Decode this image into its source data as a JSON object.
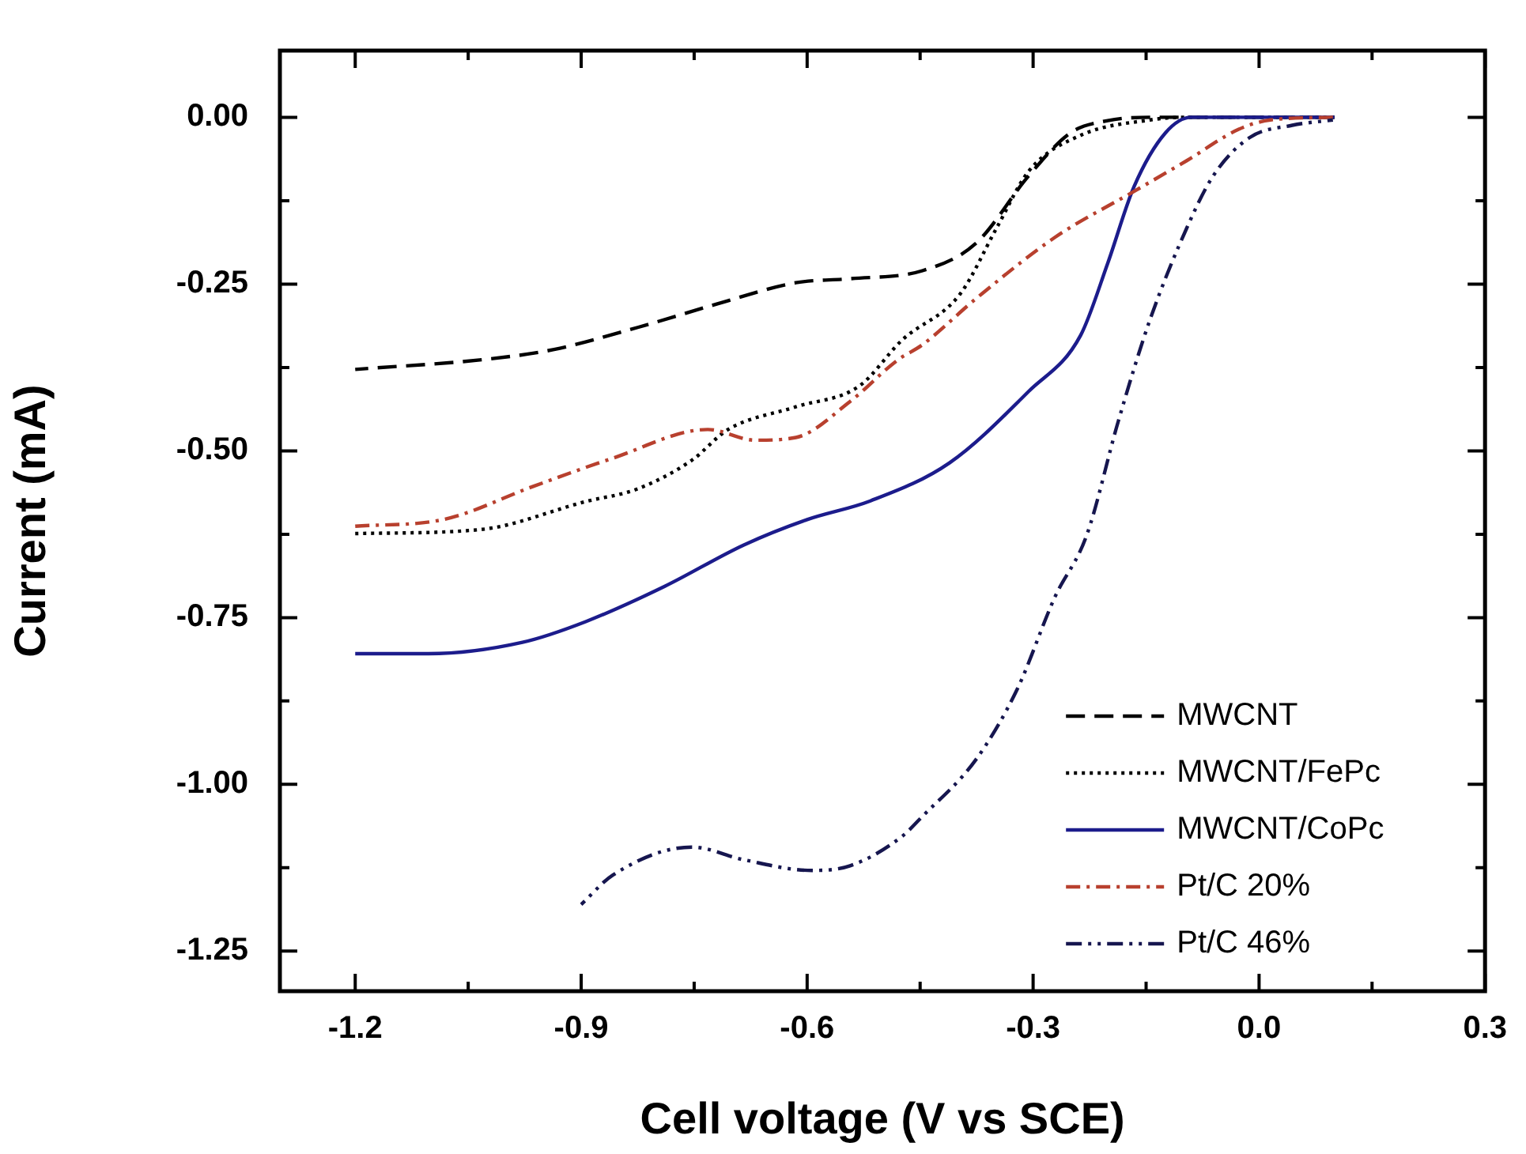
{
  "chart_data": {
    "type": "line",
    "xlabel": "Cell voltage (V vs SCE)",
    "ylabel": "Current (mA)",
    "legend": "bottom right",
    "grid": false,
    "xlim": [
      -1.3,
      0.3
    ],
    "ylim": [
      -1.31,
      0.1
    ],
    "xticks": [
      {
        "value": -1.2,
        "label": "-1.2"
      },
      {
        "value": -1.05,
        "label": null
      },
      {
        "value": -0.9,
        "label": "-0.9"
      },
      {
        "value": -0.75,
        "label": null
      },
      {
        "value": -0.6,
        "label": "-0.6"
      },
      {
        "value": -0.45,
        "label": null
      },
      {
        "value": -0.3,
        "label": "-0.3"
      },
      {
        "value": -0.15,
        "label": null
      },
      {
        "value": 0,
        "label": "0.0"
      },
      {
        "value": 0.15,
        "label": null
      },
      {
        "value": 0.3,
        "label": "0.3"
      }
    ],
    "yticks": [
      {
        "value": 0,
        "label": "0.00"
      },
      {
        "value": -0.125,
        "label": null
      },
      {
        "value": -0.25,
        "label": "-0.25"
      },
      {
        "value": -0.375,
        "label": null
      },
      {
        "value": -0.5,
        "label": "-0.50"
      },
      {
        "value": -0.625,
        "label": null
      },
      {
        "value": -0.75,
        "label": "-0.75"
      },
      {
        "value": -0.875,
        "label": null
      },
      {
        "value": -1,
        "label": "-1.00"
      },
      {
        "value": -1.125,
        "label": null
      },
      {
        "value": -1.25,
        "label": "-1.25"
      }
    ],
    "series": [
      {
        "name": "MWCNT",
        "color": "#000000",
        "line_style": "dashed",
        "x": [
          -1.2,
          -1.02,
          -0.936,
          -0.825,
          -0.72,
          -0.615,
          -0.543,
          -0.447,
          -0.376,
          -0.306,
          -0.25,
          -0.201,
          -0.145,
          -0.1,
          0,
          0.1
        ],
        "values": [
          -0.378,
          -0.362,
          -0.348,
          -0.315,
          -0.28,
          -0.248,
          -0.242,
          -0.23,
          -0.189,
          -0.088,
          -0.023,
          -0.005,
          0,
          0,
          0,
          0
        ]
      },
      {
        "name": "MWCNT/FePc",
        "color": "#000000",
        "line_style": "dotted",
        "x": [
          -1.2,
          -1.034,
          -0.894,
          -0.825,
          -0.753,
          -0.705,
          -0.615,
          -0.531,
          -0.474,
          -0.397,
          -0.348,
          -0.306,
          -0.237,
          -0.145,
          -0.1,
          0,
          0.1
        ],
        "values": [
          -0.624,
          -0.618,
          -0.576,
          -0.557,
          -0.514,
          -0.468,
          -0.434,
          -0.403,
          -0.334,
          -0.265,
          -0.165,
          -0.081,
          -0.027,
          -0.004,
          0,
          0,
          0
        ]
      },
      {
        "name": "MWCNT/CoPc",
        "color": "#1c1c8c",
        "line_style": "solid",
        "x": [
          -1.2,
          -1.103,
          -0.978,
          -0.894,
          -0.789,
          -0.684,
          -0.6,
          -0.516,
          -0.411,
          -0.306,
          -0.237,
          -0.201,
          -0.166,
          -0.124,
          -0.09,
          0,
          0.1
        ],
        "values": [
          -0.804,
          -0.804,
          -0.787,
          -0.756,
          -0.703,
          -0.641,
          -0.603,
          -0.575,
          -0.518,
          -0.411,
          -0.327,
          -0.219,
          -0.104,
          -0.023,
          0,
          0,
          0
        ]
      },
      {
        "name": "Pt/C 20%",
        "color": "#b8402e",
        "line_style": "dashdot",
        "x": [
          -1.2,
          -1.083,
          -0.963,
          -0.858,
          -0.732,
          -0.669,
          -0.615,
          -0.543,
          -0.48,
          -0.447,
          -0.376,
          -0.271,
          -0.166,
          -0.096,
          -0.027,
          0.015,
          0.098
        ],
        "values": [
          -0.613,
          -0.603,
          -0.553,
          -0.511,
          -0.468,
          -0.484,
          -0.48,
          -0.426,
          -0.364,
          -0.341,
          -0.272,
          -0.18,
          -0.111,
          -0.065,
          -0.018,
          -0.004,
          0
        ]
      },
      {
        "name": "Pt/C 46%",
        "color": "#16164f",
        "line_style": "dashdotdot",
        "x": [
          -0.9,
          -0.858,
          -0.753,
          -0.684,
          -0.594,
          -0.543,
          -0.474,
          -0.447,
          -0.376,
          -0.321,
          -0.271,
          -0.229,
          -0.187,
          -0.145,
          -0.096,
          -0.061,
          -0.012,
          0.044,
          0.098
        ],
        "values": [
          -1.18,
          -1.136,
          -1.094,
          -1.113,
          -1.129,
          -1.122,
          -1.078,
          -1.048,
          -0.963,
          -0.857,
          -0.719,
          -0.627,
          -0.456,
          -0.304,
          -0.166,
          -0.088,
          -0.03,
          -0.012,
          -0.004
        ]
      }
    ]
  }
}
